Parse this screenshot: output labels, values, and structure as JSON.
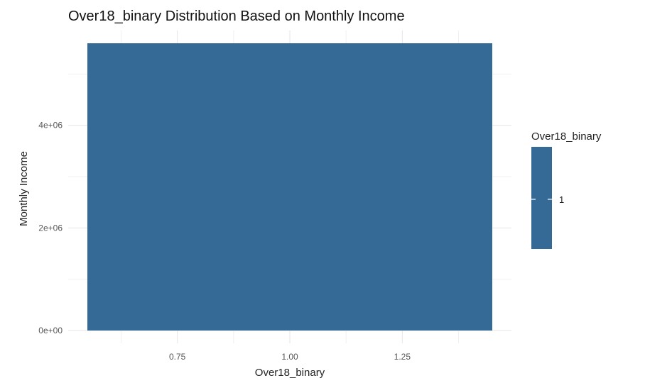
{
  "chart_data": {
    "type": "bar",
    "title": "Over18_binary Distribution Based on Monthly Income",
    "xlabel": "Over18_binary",
    "ylabel": "Monthly Income",
    "x": [
      1
    ],
    "values": [
      5600000
    ],
    "bar_width": 0.9,
    "xlim": [
      0.55,
      1.45
    ],
    "ylim": [
      0,
      5600000
    ],
    "x_ticks": [
      0.75,
      1.0,
      1.25
    ],
    "x_tick_labels": [
      "0.75",
      "1.00",
      "1.25"
    ],
    "y_ticks": [
      0,
      2000000,
      4000000
    ],
    "y_tick_labels": [
      "0e+00",
      "2e+06",
      "4e+06"
    ],
    "grid": true,
    "fill_color": "#366a96",
    "legend": {
      "title": "Over18_binary",
      "labels": [
        "1"
      ],
      "position": "right"
    }
  }
}
